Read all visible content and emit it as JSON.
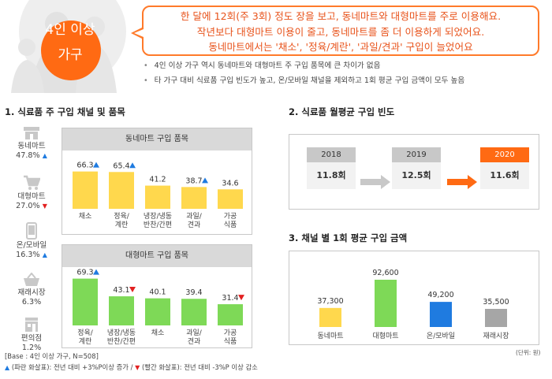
{
  "header": {
    "badge_line1": "4인 이상",
    "badge_line2": "가구",
    "callout": [
      "한 달에 12회(주 3회) 정도 장을 보고, 동네마트와 대형마트를 주로 이용해요.",
      "작년보다 대형마트 이용이 줄고, 동네마트를 좀 더 이용하게 되었어요.",
      "동네마트에서는 '채소', '정육/계란', '과일/견과' 구입이 늘었어요"
    ],
    "bullets": [
      "4인 이상 가구 역시 동네마트와 대형마트 주 구입 품목에 큰 차이가 없음",
      "타 가구 대비 식료품 구입 빈도가 높고, 온/모바일 채널을 제외하고 1회 평균 구입 금액이 모두 높음"
    ]
  },
  "section1": {
    "title": "1. 식료품 주 구입 채널 및 품목",
    "channels": [
      {
        "name": "동네마트",
        "value": "47.8%",
        "trend": "up",
        "icon": "store-icon"
      },
      {
        "name": "대형마트",
        "value": "27.0%",
        "trend": "down",
        "icon": "cart-icon"
      },
      {
        "name": "온/모바일",
        "value": "16.3%",
        "trend": "up",
        "icon": "mobile-icon"
      },
      {
        "name": "재래시장",
        "value": "6.3%",
        "trend": "none",
        "icon": "basket-icon"
      },
      {
        "name": "편의점",
        "value": "1.2%",
        "trend": "none",
        "icon": "convenience-store-icon"
      }
    ]
  },
  "section2": {
    "title": "2. 식료품 월평균 구입 빈도",
    "years": [
      {
        "year": "2018",
        "value": "11.8회"
      },
      {
        "year": "2019",
        "value": "12.5회"
      },
      {
        "year": "2020",
        "value": "11.6회"
      }
    ]
  },
  "section3": {
    "title": "3. 채널 별 1회 평균 구입 금액",
    "unit": "(단위: 원)"
  },
  "footer": {
    "base": "[Base : 4인 이상 가구, N=508]",
    "legend_blue": "(파란 화살표): 전년 대비 +3%P이상 증가 /",
    "legend_red": "(빨간 화살표): 전년 대비 -3%P 이상 감소"
  },
  "colors": {
    "accent": "#ff6a13",
    "local_bar": "#ffd84d",
    "large_bar": "#7ed957",
    "online_bar": "#1f7be0",
    "market_bar": "#a6a6a6",
    "up": "#1f7be0",
    "down": "#e22020"
  },
  "chart_data": [
    {
      "type": "bar",
      "title": "동네마트 구입 품목",
      "categories": [
        "채소",
        "정육/계란",
        "냉장/냉동 반찬/간편",
        "과일/견과",
        "가공 식품"
      ],
      "label_lines": [
        [
          "채소"
        ],
        [
          "정육/",
          "계란"
        ],
        [
          "냉장/냉동",
          "반찬/간편"
        ],
        [
          "과일/",
          "견과"
        ],
        [
          "가공",
          "식품"
        ]
      ],
      "values": [
        66.3,
        65.4,
        41.2,
        38.7,
        34.6
      ],
      "trends": [
        "up",
        "up",
        "none",
        "up",
        "none"
      ]
    },
    {
      "type": "bar",
      "title": "대형마트 구입 품목",
      "categories": [
        "정육/계란",
        "냉장/냉동 반찬/간편",
        "채소",
        "과일/견과",
        "가공 식품"
      ],
      "label_lines": [
        [
          "정육/",
          "계란"
        ],
        [
          "냉장/냉동",
          "반찬/간편"
        ],
        [
          "채소"
        ],
        [
          "과일/",
          "견과"
        ],
        [
          "가공",
          "식품"
        ]
      ],
      "values": [
        69.3,
        43.1,
        40.1,
        39.4,
        31.4
      ],
      "trends": [
        "up",
        "down",
        "none",
        "none",
        "down"
      ]
    },
    {
      "type": "bar",
      "title": "채널 별 1회 평균 구입 금액",
      "categories": [
        "동네마트",
        "대형마트",
        "온/모바일",
        "재래시장"
      ],
      "values": [
        37300,
        92600,
        49200,
        35500
      ],
      "value_labels": [
        "37,300",
        "92,600",
        "49,200",
        "35,500"
      ],
      "ylabel": "원"
    }
  ]
}
